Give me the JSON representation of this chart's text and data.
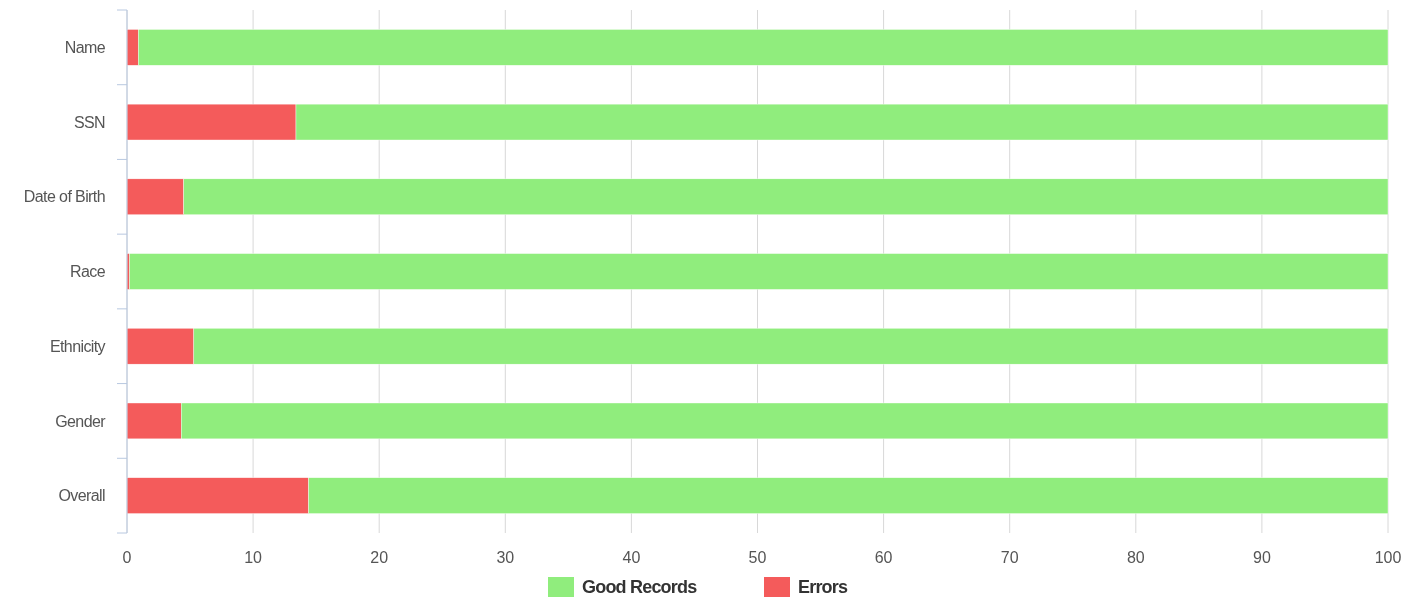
{
  "chart_data": {
    "type": "bar",
    "orientation": "horizontal",
    "stacked": true,
    "categories": [
      "Name",
      "SSN",
      "Date of Birth",
      "Race",
      "Ethnicity",
      "Gender",
      "Overall"
    ],
    "series": [
      {
        "name": "Errors",
        "color": "#f45b5b",
        "values": [
          0.9,
          13.4,
          4.5,
          0.2,
          5.3,
          4.3,
          14.4
        ]
      },
      {
        "name": "Good Records",
        "color": "#90ed7d",
        "values": [
          99.1,
          86.6,
          95.5,
          99.8,
          94.7,
          95.7,
          85.6
        ]
      }
    ],
    "xlim": [
      0,
      100
    ],
    "xticks": [
      0,
      10,
      20,
      30,
      40,
      50,
      60,
      70,
      80,
      90,
      100
    ],
    "grid": "x",
    "legend": "bottom"
  }
}
